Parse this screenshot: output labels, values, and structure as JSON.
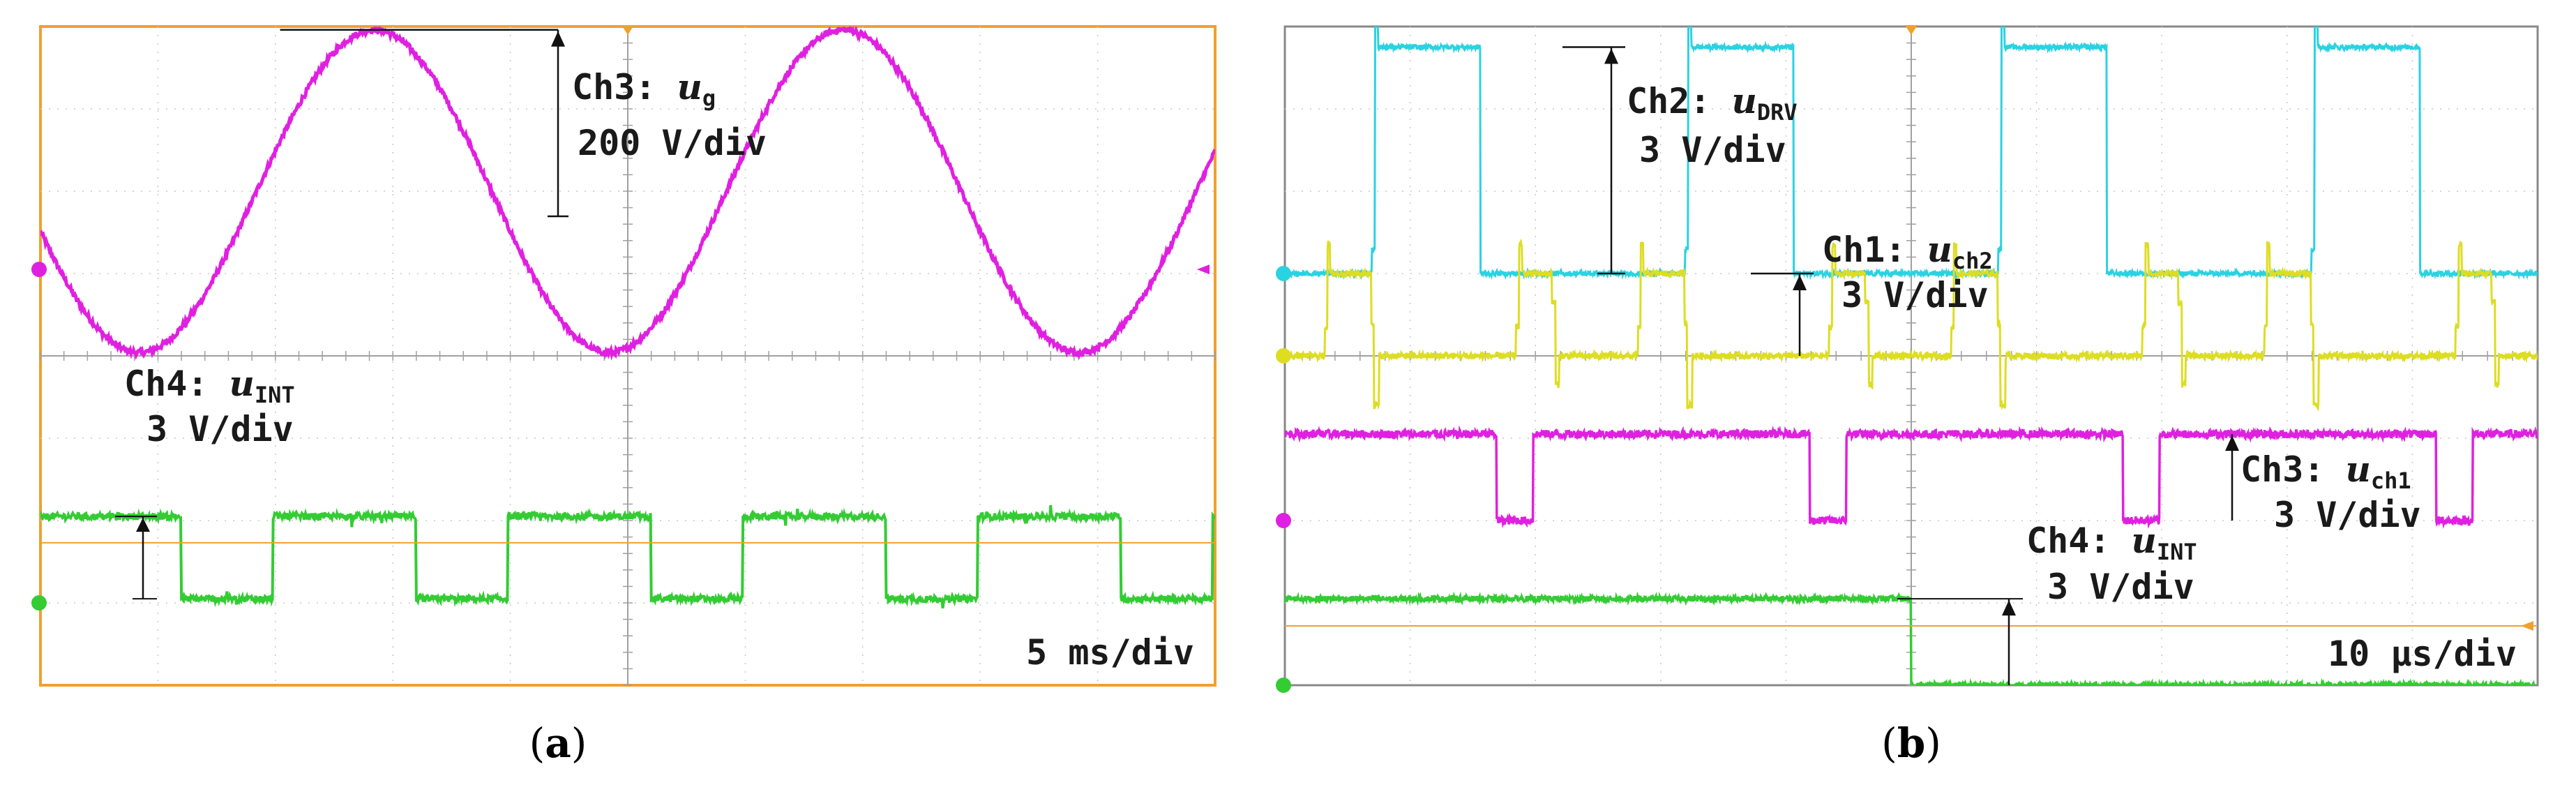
{
  "chart_data": [
    {
      "type": "line",
      "panel_label": {
        "open": "(",
        "letter": "a",
        "close": ")"
      },
      "timebase": "5 ms/div",
      "grid": true,
      "divisions": {
        "x": 10,
        "y": 8
      },
      "series": [
        {
          "channel": "Ch3",
          "prefix": "Ch3: ",
          "symbol": "u",
          "subscript": "g",
          "scale": "200 V/div",
          "color": "#e020e0",
          "waveform": "sine",
          "period_ms": 20,
          "amplitude_div": 2,
          "offset_div": 2
        },
        {
          "channel": "Ch4",
          "prefix": "Ch4: ",
          "symbol": "u",
          "subscript": "INT",
          "scale": "3 V/div",
          "color": "#33cc33",
          "waveform": "square",
          "period_ms": 10,
          "low_duration_ms": 3.9,
          "high_level_div": -1.95,
          "low_level_div": -2.95
        }
      ],
      "trigger_color": "#f0a030"
    },
    {
      "type": "line",
      "panel_label": {
        "open": "(",
        "letter": "b",
        "close": ")"
      },
      "timebase": "10 μs/div",
      "grid": true,
      "divisions": {
        "x": 10,
        "y": 8
      },
      "series": [
        {
          "channel": "Ch2",
          "prefix": "Ch2: ",
          "symbol": "u",
          "subscript": "DRV",
          "scale": "3 V/div",
          "color": "#2ad2e2",
          "waveform": "pulse",
          "period_us": 25,
          "high_level_div": 3.75,
          "low_level_div": 1.0
        },
        {
          "channel": "Ch1",
          "prefix": "Ch1: ",
          "symbol": "u",
          "subscript": "ch2",
          "scale": "3 V/div",
          "color": "#dddd22",
          "waveform": "pulse",
          "period_us": 25,
          "high_level_div": 1.0,
          "low_level_div": 0.0
        },
        {
          "channel": "Ch3",
          "prefix": "Ch3: ",
          "symbol": "u",
          "subscript": "ch1",
          "scale": "3 V/div",
          "color": "#e020e0",
          "waveform": "pulse",
          "period_us": 25,
          "high_level_div": -0.95,
          "low_level_div": -2.0
        },
        {
          "channel": "Ch4",
          "prefix": "Ch4: ",
          "symbol": "u",
          "subscript": "INT",
          "scale": "3 V/div",
          "color": "#33cc33",
          "waveform": "step",
          "step_at_us": 50,
          "high_level_div": -2.95,
          "low_level_div": -4.0
        }
      ],
      "trigger_color": "#f0a030"
    }
  ]
}
